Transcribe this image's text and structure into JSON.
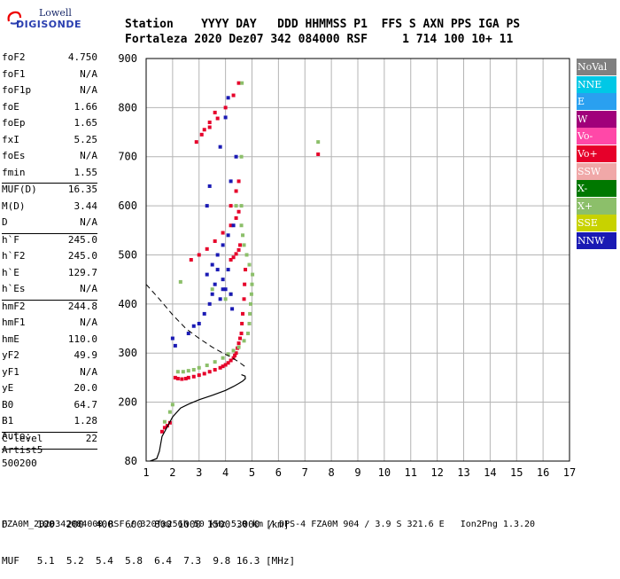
{
  "logo": {
    "line1": "Lowell",
    "line2": "DIGISONDE"
  },
  "header": {
    "labels": "Station    YYYY DAY   DDD HHMMSS P1  FFS S AXN PPS IGA PS",
    "values": "Fortaleza 2020 Dez07 342 084000 RSF     1 714 100 10+ 11"
  },
  "params": [
    {
      "k": "foF2",
      "v": "4.750"
    },
    {
      "k": "foF1",
      "v": "N/A"
    },
    {
      "k": "foF1p",
      "v": "N/A"
    },
    {
      "k": "foE",
      "v": "1.66"
    },
    {
      "k": "foEp",
      "v": "1.65"
    },
    {
      "k": "fxI",
      "v": "5.25"
    },
    {
      "k": "foEs",
      "v": "N/A"
    },
    {
      "k": "fmin",
      "v": "1.55"
    },
    {
      "sep": true
    },
    {
      "k": "MUF(D)",
      "v": "16.35"
    },
    {
      "k": "M(D)",
      "v": "3.44"
    },
    {
      "k": "D",
      "v": "N/A"
    },
    {
      "sep": true
    },
    {
      "k": "h`F",
      "v": "245.0"
    },
    {
      "k": "h`F2",
      "v": "245.0"
    },
    {
      "k": "h`E",
      "v": "129.7"
    },
    {
      "k": "h`Es",
      "v": "N/A"
    },
    {
      "sep": true
    },
    {
      "k": "hmF2",
      "v": "244.8"
    },
    {
      "k": "hmF1",
      "v": "N/A"
    },
    {
      "k": "hmE",
      "v": "110.0"
    },
    {
      "k": "yF2",
      "v": "49.9"
    },
    {
      "k": "yF1",
      "v": "N/A"
    },
    {
      "k": "yE",
      "v": "20.0"
    },
    {
      "k": "B0",
      "v": "64.7"
    },
    {
      "k": "B1",
      "v": "1.28"
    },
    {
      "sep": true
    },
    {
      "k": "C-level",
      "v": "22"
    },
    {
      "sep": true
    }
  ],
  "auto": [
    "Auto:",
    "Artist5",
    "500200"
  ],
  "legend": [
    {
      "label": "NoVal",
      "color": "#808080"
    },
    {
      "label": "NNE",
      "color": "#00c8e6"
    },
    {
      "label": "E",
      "color": "#2aa0f0"
    },
    {
      "label": "W",
      "color": "#a0007a"
    },
    {
      "label": "Vo-",
      "color": "#ff48a8"
    },
    {
      "label": "Vo+",
      "color": "#e6002a"
    },
    {
      "label": "SSW",
      "color": "#f0a8a8"
    },
    {
      "label": "X-",
      "color": "#007800"
    },
    {
      "label": "X+",
      "color": "#8cbf6a"
    },
    {
      "label": "SSE",
      "color": "#c8d200"
    },
    {
      "label": "NNW",
      "color": "#1a1ab4"
    }
  ],
  "bottom": {
    "d_line": "D     100  200  400  600  800 1000 1500 3000 [km]",
    "muf_line": "MUF   5.1  5.2  5.4  5.8  6.4  7.3  9.8 16.3 [MHz]"
  },
  "footer": "FZA0M_2020342084000.RSF / 320fx256h 50 kHz 5.0 km / DPS-4 FZA0M 904 / 3.9 S 321.6 E   Ion2Png 1.3.20",
  "chart_data": {
    "type": "scatter",
    "xlim": [
      1,
      17
    ],
    "ylim": [
      80,
      900
    ],
    "xticks": [
      1,
      2,
      3,
      4,
      5,
      6,
      7,
      8,
      9,
      10,
      11,
      12,
      13,
      14,
      15,
      16,
      17
    ],
    "yticks": [
      80,
      200,
      300,
      400,
      500,
      600,
      700,
      800,
      900
    ],
    "grid": true,
    "profile_curve": {
      "x": [
        1.15,
        1.4,
        1.5,
        1.6,
        1.8,
        2.0,
        2.3,
        2.6,
        3.0,
        3.5,
        4.0,
        4.3,
        4.5,
        4.65,
        4.75,
        4.74,
        4.6
      ],
      "y": [
        80,
        85,
        100,
        130,
        150,
        170,
        188,
        196,
        205,
        214,
        224,
        232,
        238,
        243,
        248,
        253,
        256
      ]
    },
    "model_curve": {
      "x": [
        1.0,
        1.5,
        2.0,
        2.5,
        3.0,
        3.5,
        3.9,
        4.2,
        4.5,
        4.8
      ],
      "y": [
        440,
        410,
        378,
        350,
        330,
        312,
        300,
        292,
        282,
        270
      ]
    },
    "echo_series": [
      {
        "name": "Vo+",
        "color": "#e6002a",
        "x": [
          1.6,
          1.7,
          1.8,
          1.9,
          2.1,
          2.2,
          2.35,
          2.5,
          2.6,
          2.8,
          3.0,
          3.2,
          3.4,
          3.6,
          3.8,
          3.9,
          4.0,
          4.1,
          4.2,
          4.3,
          4.35,
          4.4,
          4.45,
          4.5,
          4.55,
          4.6,
          4.62,
          4.65,
          4.7,
          4.72,
          4.75,
          4.2,
          4.3,
          4.4,
          4.5,
          4.55,
          2.7,
          3.0,
          3.3,
          3.6,
          3.9,
          4.2,
          4.4,
          4.5,
          2.9,
          3.1,
          3.4,
          3.7,
          4.0,
          4.3,
          4.5,
          3.2,
          3.4,
          3.6,
          4.2,
          4.4,
          4.5,
          7.5
        ],
        "y": [
          140,
          148,
          152,
          158,
          250,
          248,
          247,
          248,
          250,
          252,
          255,
          258,
          262,
          266,
          270,
          273,
          276,
          280,
          285,
          290,
          295,
          300,
          310,
          320,
          330,
          340,
          360,
          380,
          410,
          440,
          470,
          490,
          495,
          502,
          510,
          520,
          490,
          500,
          512,
          528,
          545,
          560,
          575,
          588,
          730,
          745,
          760,
          778,
          800,
          825,
          850,
          755,
          770,
          790,
          600,
          630,
          650,
          705
        ]
      },
      {
        "name": "X+",
        "color": "#8cbf6a",
        "x": [
          1.7,
          1.9,
          2.0,
          2.2,
          2.4,
          2.6,
          2.8,
          3.0,
          3.3,
          3.6,
          3.9,
          4.1,
          4.3,
          4.5,
          4.7,
          4.85,
          4.9,
          4.92,
          4.95,
          4.98,
          5.0,
          5.02,
          4.9,
          4.8,
          4.7,
          4.65,
          4.6,
          4.6,
          4.6,
          4.62,
          7.5,
          2.3,
          3.5,
          4.0,
          4.2,
          4.4
        ],
        "y": [
          160,
          180,
          195,
          262,
          262,
          264,
          266,
          270,
          275,
          282,
          290,
          298,
          305,
          312,
          325,
          340,
          360,
          380,
          400,
          420,
          440,
          460,
          480,
          500,
          520,
          540,
          560,
          600,
          700,
          850,
          730,
          445,
          430,
          410,
          420,
          600
        ]
      },
      {
        "name": "NNW",
        "color": "#1a1ab4",
        "x": [
          2.0,
          2.1,
          2.6,
          2.8,
          3.0,
          3.2,
          3.4,
          3.5,
          3.6,
          3.8,
          3.9,
          4.0,
          4.1,
          4.2,
          4.25,
          3.7,
          3.9,
          4.1,
          4.3,
          4.2,
          4.4,
          3.3,
          3.5,
          3.7,
          3.9,
          3.3,
          3.4,
          3.8,
          4.0,
          4.1
        ],
        "y": [
          330,
          315,
          340,
          355,
          360,
          380,
          400,
          420,
          440,
          410,
          450,
          430,
          470,
          420,
          390,
          500,
          520,
          540,
          560,
          650,
          700,
          460,
          480,
          470,
          430,
          600,
          640,
          720,
          780,
          820
        ]
      }
    ]
  }
}
